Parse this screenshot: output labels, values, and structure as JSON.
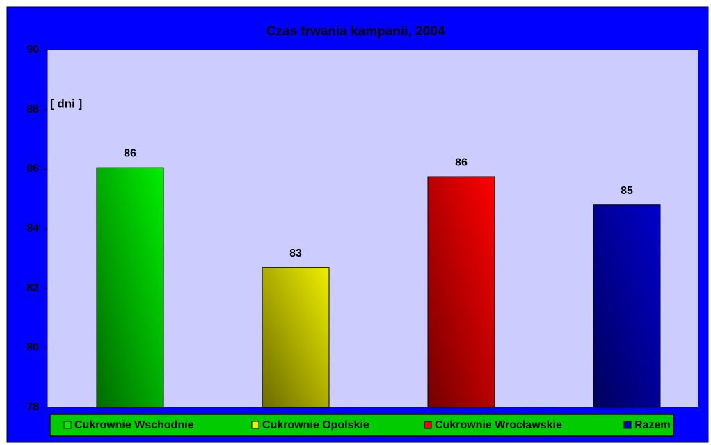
{
  "chart_data": {
    "type": "bar",
    "title": "Czas trwania kampanii, 2004",
    "y_label": "[ dni ]",
    "ylim": [
      78,
      90
    ],
    "yticks": [
      78,
      80,
      82,
      84,
      86,
      88,
      90
    ],
    "grid": false,
    "legend": "bottom",
    "series": [
      {
        "name": "Cukrownie Wschodnie",
        "color": "#00ee00",
        "values": [
          86.05
        ],
        "value_labels": [
          "86"
        ]
      },
      {
        "name": "Cukrownie Opolskie",
        "color": "#eeee00",
        "values": [
          82.7
        ],
        "value_labels": [
          "83"
        ]
      },
      {
        "name": "Cukrownie Wrocławskie",
        "color": "#ff0000",
        "values": [
          85.75
        ],
        "value_labels": [
          "86"
        ]
      },
      {
        "name": "Razem",
        "color": "#0000cc",
        "values": [
          84.8
        ],
        "value_labels": [
          "85"
        ]
      }
    ]
  }
}
